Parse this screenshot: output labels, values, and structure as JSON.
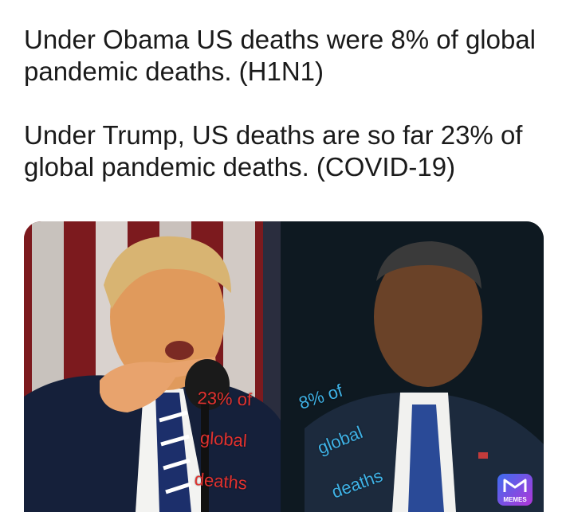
{
  "caption": {
    "line1": "Under Obama US deaths were 8% of global pandemic deaths. (H1N1)",
    "line2": "Under Trump, US deaths are so far 23% of global pandemic deaths. (COVID-19)"
  },
  "meme": {
    "left_overlay": [
      "23% of",
      "global",
      "deaths"
    ],
    "right_overlay": [
      "8% of",
      "global",
      "deaths"
    ],
    "badge_label": "MEMES",
    "colors": {
      "red_text": "#e2322f",
      "blue_text": "#3fb2e6"
    }
  }
}
